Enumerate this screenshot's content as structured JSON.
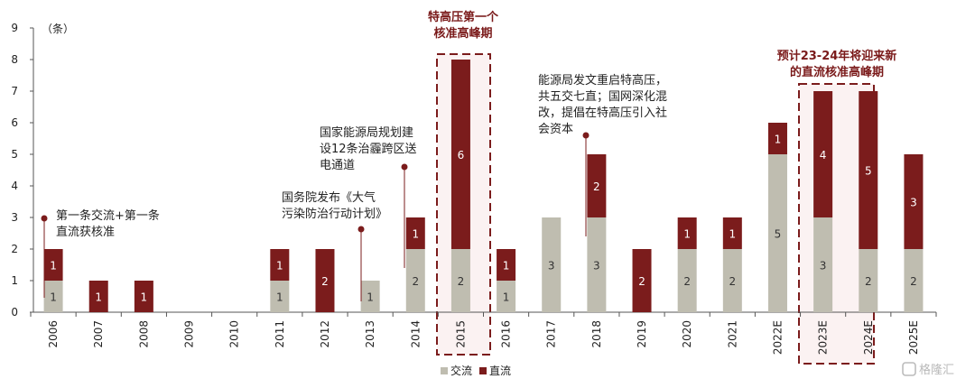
{
  "chart_data": {
    "type": "bar",
    "stacked": true,
    "unit_label": "（条）",
    "ylim": [
      0,
      9
    ],
    "yticks": [
      0,
      1,
      2,
      3,
      4,
      5,
      6,
      7,
      8,
      9
    ],
    "grid": false,
    "legend_position": "bottom-center",
    "categories": [
      "2006",
      "2007",
      "2008",
      "2009",
      "2010",
      "2011",
      "2012",
      "2013",
      "2014",
      "2015",
      "2016",
      "2017",
      "2018",
      "2019",
      "2020",
      "2021",
      "2022E",
      "2023E",
      "2024E",
      "2025E"
    ],
    "series": [
      {
        "name": "交流",
        "color": "#bfbdb0",
        "label_color": "#333333",
        "values": [
          1,
          0,
          0,
          0,
          0,
          1,
          0,
          1,
          2,
          2,
          1,
          3,
          3,
          0,
          2,
          2,
          5,
          3,
          2,
          2
        ]
      },
      {
        "name": "直流",
        "color": "#7b1c1c",
        "label_color": "#ffffff",
        "values": [
          1,
          1,
          1,
          0,
          0,
          1,
          2,
          0,
          1,
          6,
          1,
          0,
          2,
          2,
          1,
          1,
          1,
          4,
          5,
          3
        ]
      }
    ],
    "annotations": [
      {
        "id": "a2006",
        "category": "2006",
        "lines": [
          "第一条交流+第一条",
          "直流获核准"
        ]
      },
      {
        "id": "a2013",
        "category": "2013",
        "lines": [
          "国务院发布《大气",
          "污染防治行动计划》"
        ]
      },
      {
        "id": "a2014",
        "category": "2014",
        "lines": [
          "国家能源局规划建",
          "设12条治霾跨区送",
          "电通道"
        ]
      },
      {
        "id": "a2018",
        "category": "2018",
        "lines": [
          "能源局发文重启特高压，",
          "共五交七直；国网深化混",
          "改，提倡在特高压引入社",
          "会资本"
        ]
      }
    ],
    "highlights": [
      {
        "id": "h2015",
        "categories": [
          "2015"
        ],
        "lines": [
          "特高压第一个",
          "核准高峰期"
        ]
      },
      {
        "id": "h2023",
        "categories": [
          "2023E",
          "2024E"
        ],
        "lines": [
          "预计23-24年将迎来新",
          "的直流核准高峰期"
        ]
      }
    ]
  },
  "watermark": {
    "text": "格隆汇"
  }
}
